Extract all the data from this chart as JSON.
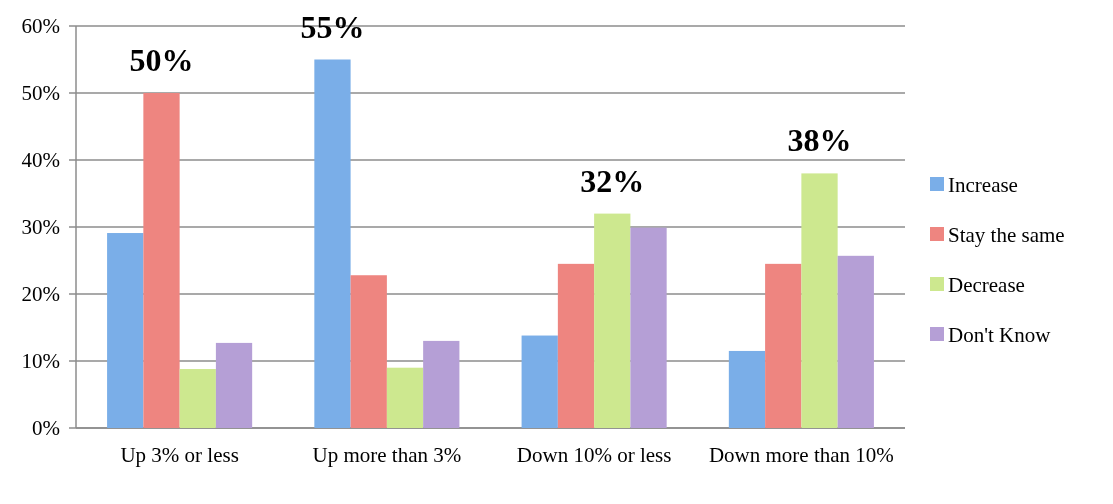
{
  "chart_data": {
    "type": "bar",
    "categories": [
      "Up 3% or less",
      "Up more than 3%",
      "Down 10% or less",
      "Down more than 10%"
    ],
    "series": [
      {
        "name": "Increase",
        "color": "#7aaee8",
        "values": [
          29.1,
          55,
          13.8,
          11.5
        ],
        "value_labels": [
          null,
          "55%",
          null,
          null
        ]
      },
      {
        "name": "Stay the same",
        "color": "#ee8580",
        "values": [
          50,
          22.8,
          24.5,
          24.5
        ],
        "value_labels": [
          "50%",
          null,
          null,
          null
        ]
      },
      {
        "name": "Decrease",
        "color": "#cde88f",
        "values": [
          8.8,
          9,
          32,
          38
        ],
        "value_labels": [
          null,
          null,
          "32%",
          "38%"
        ]
      },
      {
        "name": "Don't Know",
        "color": "#b59fd6",
        "values": [
          12.7,
          13,
          29.9,
          25.7
        ],
        "value_labels": [
          null,
          null,
          null,
          null
        ]
      }
    ],
    "ylim": [
      0,
      60
    ],
    "yticks": [
      {
        "value": 0,
        "label": "0%"
      },
      {
        "value": 10,
        "label": "10%"
      },
      {
        "value": 20,
        "label": "20%"
      },
      {
        "value": 30,
        "label": "30%"
      },
      {
        "value": 40,
        "label": "40%"
      },
      {
        "value": 50,
        "label": "50%"
      },
      {
        "value": 60,
        "label": "60%"
      }
    ],
    "grid": "y",
    "legend": "right"
  }
}
